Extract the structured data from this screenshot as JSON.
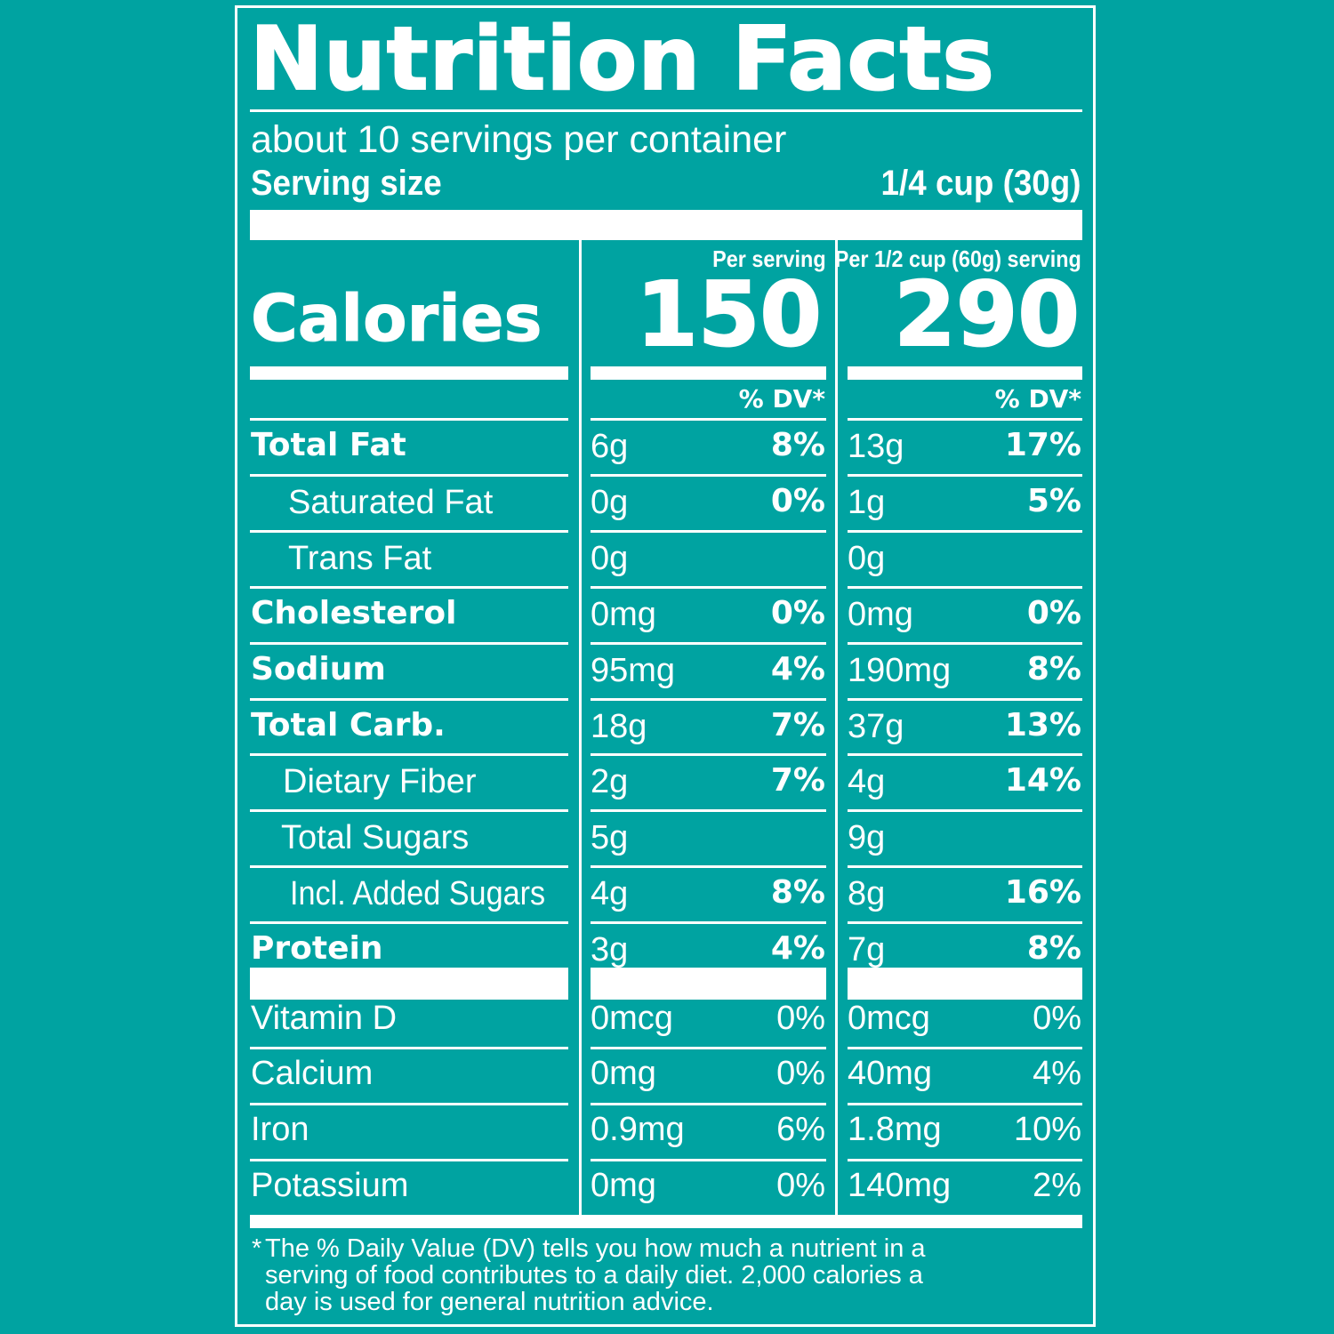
{
  "label": {
    "title": "Nutrition Facts",
    "servings_per_container": "about 10 servings per container",
    "serving_size_label": "Serving size",
    "serving_size_value": "1/4 cup (30g)",
    "col1_header": "Per serving",
    "col2_header": "Per 1/2 cup (60g) serving",
    "calories_label": "Calories",
    "calories_col1": "150",
    "calories_col2": "290",
    "dv_header_col1": "% DV*",
    "dv_header_col2": "% DV*",
    "rows": [
      {
        "name": "Total Fat",
        "a1": "6g",
        "p1": "8%",
        "a2": "13g",
        "p2": "17%"
      },
      {
        "name": "Saturated Fat",
        "a1": "0g",
        "p1": "0%",
        "a2": "1g",
        "p2": "5%"
      },
      {
        "name": "Trans Fat",
        "a1": "0g",
        "p1": "",
        "a2": "0g",
        "p2": ""
      },
      {
        "name": "Cholesterol",
        "a1": "0mg",
        "p1": "0%",
        "a2": "0mg",
        "p2": "0%"
      },
      {
        "name": "Sodium",
        "a1": "95mg",
        "p1": "4%",
        "a2": "190mg",
        "p2": "8%"
      },
      {
        "name": "Total Carb.",
        "a1": "18g",
        "p1": "7%",
        "a2": "37g",
        "p2": "13%"
      },
      {
        "name": "Dietary Fiber",
        "a1": "2g",
        "p1": "7%",
        "a2": "4g",
        "p2": "14%"
      },
      {
        "name": "Total Sugars",
        "a1": "5g",
        "p1": "",
        "a2": "9g",
        "p2": ""
      },
      {
        "name": "Incl. Added Sugars",
        "a1": "4g",
        "p1": "8%",
        "a2": "8g",
        "p2": "16%"
      },
      {
        "name": "Protein",
        "a1": "3g",
        "p1": "4%",
        "a2": "7g",
        "p2": "8%"
      }
    ],
    "vitamins": [
      {
        "name": "Vitamin D",
        "a1": "0mcg",
        "p1": "0%",
        "a2": "0mcg",
        "p2": "0%"
      },
      {
        "name": "Calcium",
        "a1": "0mg",
        "p1": "0%",
        "a2": "40mg",
        "p2": "4%"
      },
      {
        "name": "Iron",
        "a1": "0.9mg",
        "p1": "6%",
        "a2": "1.8mg",
        "p2": "10%"
      },
      {
        "name": "Potassium",
        "a1": "0mg",
        "p1": "0%",
        "a2": "140mg",
        "p2": "2%"
      }
    ],
    "footnote_star": "*",
    "footnote_lines": [
      "The % Daily Value (DV) tells you how much a nutrient in a",
      "serving of food contributes to a daily diet. 2,000 calories a",
      "day is used for general nutrition advice."
    ]
  },
  "colors": {
    "background": "#00A3A1",
    "foreground": "#FFFFFF"
  }
}
